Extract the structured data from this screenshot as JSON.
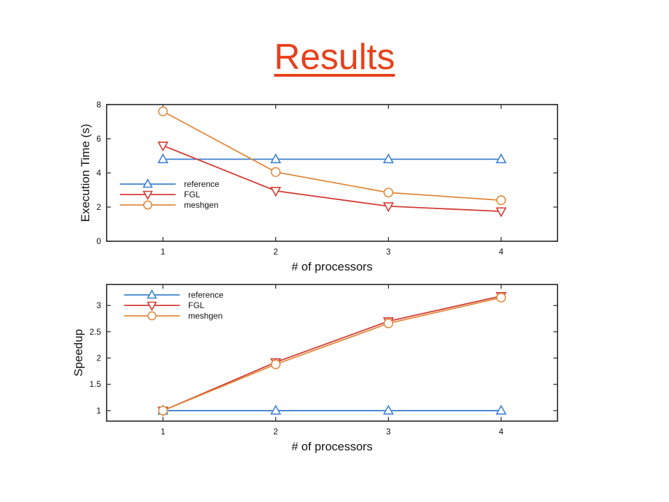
{
  "slide": {
    "title": "Results",
    "title_color": "#e8411c"
  },
  "chart_data": [
    {
      "type": "line",
      "xlabel": "# of processors",
      "ylabel": "Execution Time (s)",
      "x": [
        1,
        2,
        3,
        4
      ],
      "xticks": [
        "1",
        "2",
        "3",
        "4"
      ],
      "yticks": [
        "0",
        "2",
        "4",
        "6",
        "8"
      ],
      "xlim": [
        0.5,
        4.5
      ],
      "ylim": [
        0,
        8
      ],
      "grid": false,
      "legend": "left",
      "series": [
        {
          "name": "reference",
          "values": [
            4.8,
            4.8,
            4.8,
            4.8
          ],
          "color": "#3b7fd1",
          "marker": "triangle-up"
        },
        {
          "name": "FGL",
          "values": [
            5.6,
            2.95,
            2.05,
            1.75
          ],
          "color": "#d23a32",
          "marker": "triangle-down"
        },
        {
          "name": "meshgen",
          "values": [
            7.6,
            4.05,
            2.85,
            2.4
          ],
          "color": "#e0883a",
          "marker": "circle"
        }
      ]
    },
    {
      "type": "line",
      "xlabel": "# of processors",
      "ylabel": "Speedup",
      "x": [
        1,
        2,
        3,
        4
      ],
      "xticks": [
        "1",
        "2",
        "3",
        "4"
      ],
      "yticks": [
        "1",
        "1.5",
        "2",
        "2.5",
        "3"
      ],
      "xlim": [
        0.5,
        4.5
      ],
      "ylim": [
        0.8,
        3.4
      ],
      "grid": false,
      "legend": "top-left",
      "series": [
        {
          "name": "reference",
          "values": [
            1,
            1,
            1,
            1
          ],
          "color": "#3b7fd1",
          "marker": "triangle-up"
        },
        {
          "name": "FGL",
          "values": [
            1,
            1.92,
            2.7,
            3.18
          ],
          "color": "#d23a32",
          "marker": "triangle-down"
        },
        {
          "name": "meshgen",
          "values": [
            1,
            1.88,
            2.66,
            3.15
          ],
          "color": "#e0883a",
          "marker": "circle"
        }
      ]
    }
  ]
}
